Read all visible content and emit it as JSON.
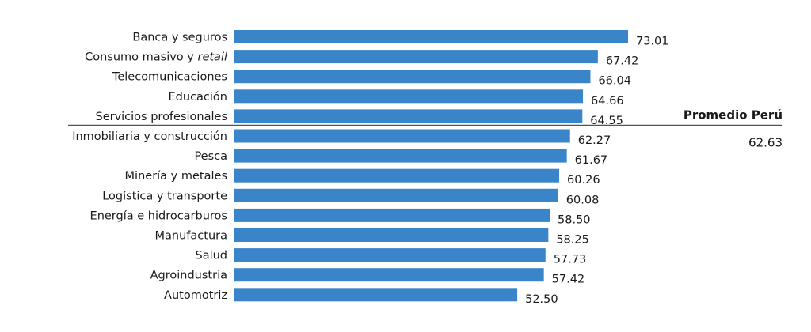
{
  "chart_data": {
    "type": "bar",
    "orientation": "horizontal",
    "categories": [
      "Banca y seguros",
      "Consumo masivo y retail",
      "Telecomunicaciones",
      "Educación",
      "Servicios profesionales",
      "Inmobiliaria y construcción",
      "Pesca",
      "Minería y metales",
      "Logística y transporte",
      "Energía e hidrocarburos",
      "Manufactura",
      "Salud",
      "Agroindustria",
      "Automotriz"
    ],
    "category_prefix_italic": {
      "1": {
        "prefix": "Consumo masivo y ",
        "italic": "retail"
      }
    },
    "values": [
      73.01,
      67.42,
      66.04,
      64.66,
      64.55,
      62.27,
      61.67,
      60.26,
      60.08,
      58.5,
      58.25,
      57.73,
      57.42,
      52.5
    ],
    "value_labels": [
      "73.01",
      "67.42",
      "66.04",
      "64.66",
      "64.55",
      "62.27",
      "61.67",
      "60.26",
      "60.08",
      "58.50",
      "58.25",
      "57.73",
      "57.42",
      "52.50"
    ],
    "reference_line": {
      "label": "Promedio Perú",
      "value_label": "62.63",
      "value": 62.63,
      "placed_after_index": 4
    },
    "bar_color": "#3a85c9",
    "line_color": "#555555",
    "grid": false,
    "legend": "none"
  }
}
